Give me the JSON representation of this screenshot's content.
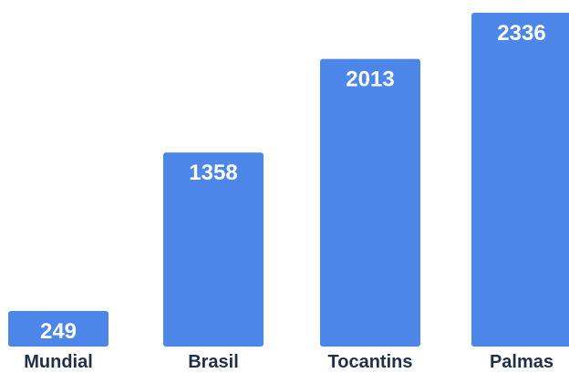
{
  "chart_data": {
    "type": "bar",
    "categories": [
      "Mundial",
      "Brasil",
      "Tocantins",
      "Palmas"
    ],
    "values": [
      249,
      1358,
      2013,
      2336
    ],
    "title": "",
    "xlabel": "",
    "ylabel": "",
    "ylim": [
      0,
      2336
    ],
    "grid": false,
    "legend": "none",
    "bar_color": "#4c86e8",
    "label_color": "#1f2f4a",
    "value_label_color": "#ffffff"
  }
}
